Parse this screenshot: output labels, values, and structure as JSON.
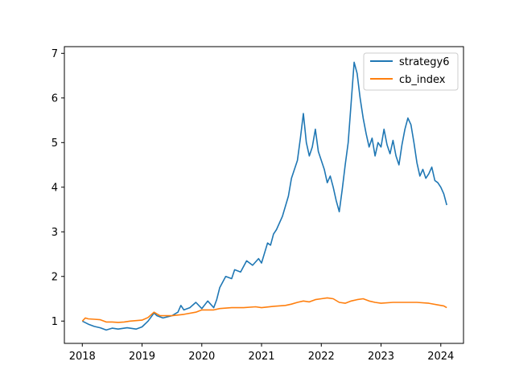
{
  "chart_data": {
    "type": "line",
    "title": "",
    "xlabel": "",
    "ylabel": "",
    "xlim": [
      2017.7,
      2024.38
    ],
    "ylim": [
      0.5,
      7.15
    ],
    "grid": false,
    "legend_position": "top-right",
    "x_ticks": [
      2018,
      2019,
      2020,
      2021,
      2022,
      2023,
      2024
    ],
    "x_tick_labels": [
      "2018",
      "2019",
      "2020",
      "2021",
      "2022",
      "2023",
      "2024"
    ],
    "y_ticks": [
      1,
      2,
      3,
      4,
      5,
      6,
      7
    ],
    "y_tick_labels": [
      "1",
      "2",
      "3",
      "4",
      "5",
      "6",
      "7"
    ],
    "series": [
      {
        "name": "strategy6",
        "color": "#1f77b4",
        "x": [
          2018.0,
          2018.1,
          2018.2,
          2018.3,
          2018.4,
          2018.5,
          2018.6,
          2018.75,
          2018.9,
          2019.0,
          2019.1,
          2019.2,
          2019.25,
          2019.35,
          2019.5,
          2019.6,
          2019.65,
          2019.7,
          2019.8,
          2019.9,
          2020.0,
          2020.1,
          2020.2,
          2020.25,
          2020.3,
          2020.4,
          2020.5,
          2020.55,
          2020.65,
          2020.75,
          2020.85,
          2020.95,
          2021.0,
          2021.1,
          2021.15,
          2021.2,
          2021.25,
          2021.35,
          2021.45,
          2021.5,
          2021.6,
          2021.65,
          2021.7,
          2021.75,
          2021.8,
          2021.85,
          2021.9,
          2021.95,
          2022.0,
          2022.05,
          2022.1,
          2022.15,
          2022.2,
          2022.25,
          2022.3,
          2022.35,
          2022.4,
          2022.45,
          2022.5,
          2022.55,
          2022.6,
          2022.65,
          2022.7,
          2022.75,
          2022.8,
          2022.85,
          2022.9,
          2022.95,
          2023.0,
          2023.05,
          2023.1,
          2023.15,
          2023.2,
          2023.25,
          2023.3,
          2023.35,
          2023.4,
          2023.45,
          2023.5,
          2023.55,
          2023.6,
          2023.65,
          2023.7,
          2023.75,
          2023.8,
          2023.85,
          2023.9,
          2023.95,
          2024.0,
          2024.05,
          2024.1
        ],
        "values": [
          1.0,
          0.93,
          0.88,
          0.85,
          0.8,
          0.84,
          0.82,
          0.85,
          0.82,
          0.87,
          1.0,
          1.18,
          1.12,
          1.07,
          1.12,
          1.2,
          1.35,
          1.25,
          1.3,
          1.42,
          1.28,
          1.45,
          1.3,
          1.48,
          1.75,
          2.0,
          1.95,
          2.15,
          2.1,
          2.35,
          2.25,
          2.4,
          2.3,
          2.75,
          2.7,
          2.95,
          3.05,
          3.35,
          3.8,
          4.2,
          4.6,
          5.1,
          5.65,
          5.0,
          4.7,
          4.9,
          5.3,
          4.8,
          4.6,
          4.4,
          4.1,
          4.25,
          4.0,
          3.7,
          3.45,
          3.95,
          4.5,
          5.0,
          5.9,
          6.8,
          6.55,
          6.0,
          5.55,
          5.2,
          4.9,
          5.1,
          4.7,
          5.0,
          4.9,
          5.3,
          4.95,
          4.75,
          5.05,
          4.7,
          4.5,
          4.95,
          5.3,
          5.55,
          5.4,
          5.0,
          4.55,
          4.25,
          4.4,
          4.2,
          4.3,
          4.45,
          4.15,
          4.1,
          4.0,
          3.85,
          3.6
        ]
      },
      {
        "name": "cb_index",
        "color": "#ff7f0e",
        "x": [
          2018.0,
          2018.05,
          2018.1,
          2018.2,
          2018.3,
          2018.4,
          2018.5,
          2018.6,
          2018.7,
          2018.8,
          2018.9,
          2019.0,
          2019.1,
          2019.2,
          2019.25,
          2019.3,
          2019.5,
          2019.7,
          2019.9,
          2020.0,
          2020.2,
          2020.3,
          2020.5,
          2020.7,
          2020.9,
          2021.0,
          2021.2,
          2021.4,
          2021.5,
          2021.6,
          2021.7,
          2021.8,
          2021.9,
          2022.0,
          2022.1,
          2022.2,
          2022.3,
          2022.4,
          2022.5,
          2022.6,
          2022.7,
          2022.8,
          2022.9,
          2023.0,
          2023.2,
          2023.4,
          2023.6,
          2023.8,
          2024.0,
          2024.05,
          2024.1
        ],
        "values": [
          1.0,
          1.07,
          1.05,
          1.04,
          1.03,
          0.98,
          0.98,
          0.97,
          0.98,
          1.0,
          1.01,
          1.02,
          1.08,
          1.2,
          1.16,
          1.12,
          1.12,
          1.15,
          1.2,
          1.25,
          1.25,
          1.28,
          1.3,
          1.3,
          1.32,
          1.3,
          1.33,
          1.35,
          1.38,
          1.42,
          1.45,
          1.43,
          1.48,
          1.5,
          1.52,
          1.5,
          1.42,
          1.4,
          1.45,
          1.48,
          1.5,
          1.45,
          1.42,
          1.4,
          1.42,
          1.42,
          1.42,
          1.4,
          1.35,
          1.34,
          1.3
        ]
      }
    ]
  }
}
